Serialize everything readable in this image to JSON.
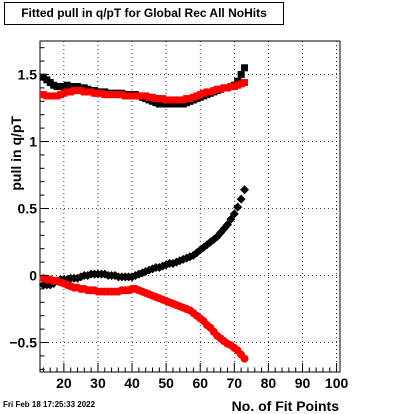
{
  "title": "Fitted pull in q/pT for Global Rec All NoHits",
  "timestamp": "Fri Feb 18 17:25:33 2022",
  "chart_data": {
    "type": "scatter",
    "title": "Fitted pull in q/pT for Global Rec All NoHits",
    "xlabel": "No. of Fit Points",
    "ylabel": "pull in q/pT",
    "xlim": [
      13,
      101
    ],
    "ylim": [
      -0.72,
      1.75
    ],
    "x_ticks": [
      "20",
      "30",
      "40",
      "50",
      "60",
      "70",
      "80",
      "90",
      "100"
    ],
    "y_ticks": [
      "−0.5",
      "0",
      "0.5",
      "1",
      "1.5"
    ],
    "grid": true,
    "series": [
      {
        "color": "#000000",
        "marker": "square",
        "x": [
          14,
          15,
          16,
          17,
          18,
          19,
          20,
          21,
          22,
          23,
          24,
          25,
          26,
          27,
          28,
          29,
          30,
          31,
          32,
          33,
          34,
          35,
          36,
          37,
          38,
          39,
          40,
          41,
          42,
          43,
          44,
          45,
          46,
          47,
          48,
          49,
          50,
          51,
          52,
          53,
          54,
          55,
          56,
          57,
          58,
          59,
          60,
          61,
          62,
          63,
          64,
          65,
          66,
          67,
          68,
          69,
          70,
          71,
          72,
          73
        ],
        "y": [
          1.48,
          1.46,
          1.44,
          1.42,
          1.41,
          1.41,
          1.41,
          1.42,
          1.41,
          1.41,
          1.41,
          1.4,
          1.4,
          1.39,
          1.38,
          1.38,
          1.37,
          1.37,
          1.37,
          1.36,
          1.36,
          1.36,
          1.36,
          1.36,
          1.35,
          1.35,
          1.35,
          1.35,
          1.34,
          1.33,
          1.32,
          1.31,
          1.3,
          1.29,
          1.28,
          1.28,
          1.28,
          1.28,
          1.28,
          1.28,
          1.28,
          1.28,
          1.29,
          1.3,
          1.31,
          1.32,
          1.33,
          1.34,
          1.35,
          1.36,
          1.37,
          1.38,
          1.39,
          1.4,
          1.4,
          1.41,
          1.42,
          1.45,
          1.5,
          1.55
        ]
      },
      {
        "color": "#ff0000",
        "marker": "square",
        "x": [
          14,
          15,
          16,
          17,
          18,
          19,
          20,
          21,
          22,
          23,
          24,
          25,
          26,
          27,
          28,
          29,
          30,
          31,
          32,
          33,
          34,
          35,
          36,
          37,
          38,
          39,
          40,
          41,
          42,
          43,
          44,
          45,
          46,
          47,
          48,
          49,
          50,
          51,
          52,
          53,
          54,
          55,
          56,
          57,
          58,
          59,
          60,
          61,
          62,
          63,
          64,
          65,
          66,
          67,
          68,
          69,
          70,
          71,
          72,
          73
        ],
        "y": [
          1.35,
          1.34,
          1.34,
          1.34,
          1.34,
          1.35,
          1.36,
          1.37,
          1.37,
          1.38,
          1.38,
          1.38,
          1.37,
          1.37,
          1.37,
          1.36,
          1.36,
          1.36,
          1.35,
          1.35,
          1.35,
          1.35,
          1.35,
          1.35,
          1.34,
          1.34,
          1.34,
          1.34,
          1.34,
          1.34,
          1.34,
          1.33,
          1.33,
          1.32,
          1.32,
          1.32,
          1.31,
          1.31,
          1.31,
          1.31,
          1.31,
          1.31,
          1.32,
          1.32,
          1.33,
          1.34,
          1.35,
          1.36,
          1.37,
          1.37,
          1.38,
          1.39,
          1.39,
          1.4,
          1.4,
          1.41,
          1.41,
          1.42,
          1.43,
          1.44
        ]
      },
      {
        "color": "#000000",
        "marker": "diamond",
        "x": [
          14,
          15,
          16,
          17,
          18,
          19,
          20,
          21,
          22,
          23,
          24,
          25,
          26,
          27,
          28,
          29,
          30,
          31,
          32,
          33,
          34,
          35,
          36,
          37,
          38,
          39,
          40,
          41,
          42,
          43,
          44,
          45,
          46,
          47,
          48,
          49,
          50,
          51,
          52,
          53,
          54,
          55,
          56,
          57,
          58,
          59,
          60,
          61,
          62,
          63,
          64,
          65,
          66,
          67,
          68,
          69,
          70,
          71,
          72,
          73
        ],
        "y": [
          -0.07,
          -0.07,
          -0.07,
          -0.06,
          -0.04,
          -0.03,
          -0.03,
          -0.03,
          -0.02,
          -0.02,
          -0.02,
          -0.01,
          0.0,
          0.0,
          0.01,
          0.01,
          0.01,
          0.01,
          0.01,
          0.0,
          0.0,
          0.0,
          -0.01,
          -0.01,
          -0.01,
          -0.01,
          -0.01,
          0.0,
          0.01,
          0.02,
          0.03,
          0.04,
          0.05,
          0.06,
          0.06,
          0.07,
          0.08,
          0.09,
          0.09,
          0.1,
          0.11,
          0.12,
          0.13,
          0.14,
          0.15,
          0.17,
          0.19,
          0.21,
          0.23,
          0.25,
          0.27,
          0.29,
          0.32,
          0.35,
          0.38,
          0.42,
          0.46,
          0.51,
          0.57,
          0.64
        ]
      },
      {
        "color": "#ff0000",
        "marker": "circle",
        "x": [
          14,
          15,
          16,
          17,
          18,
          19,
          20,
          21,
          22,
          23,
          24,
          25,
          26,
          27,
          28,
          29,
          30,
          31,
          32,
          33,
          34,
          35,
          36,
          37,
          38,
          39,
          40,
          41,
          42,
          43,
          44,
          45,
          46,
          47,
          48,
          49,
          50,
          51,
          52,
          53,
          54,
          55,
          56,
          57,
          58,
          59,
          60,
          61,
          62,
          63,
          64,
          65,
          66,
          67,
          68,
          69,
          70,
          71,
          72,
          73
        ],
        "y": [
          -0.02,
          -0.03,
          -0.03,
          -0.04,
          -0.04,
          -0.05,
          -0.06,
          -0.07,
          -0.08,
          -0.09,
          -0.09,
          -0.1,
          -0.1,
          -0.11,
          -0.11,
          -0.11,
          -0.12,
          -0.12,
          -0.12,
          -0.12,
          -0.12,
          -0.12,
          -0.12,
          -0.11,
          -0.11,
          -0.11,
          -0.1,
          -0.1,
          -0.11,
          -0.12,
          -0.13,
          -0.14,
          -0.15,
          -0.16,
          -0.17,
          -0.18,
          -0.19,
          -0.2,
          -0.21,
          -0.22,
          -0.23,
          -0.24,
          -0.25,
          -0.26,
          -0.28,
          -0.3,
          -0.32,
          -0.34,
          -0.37,
          -0.39,
          -0.42,
          -0.45,
          -0.47,
          -0.49,
          -0.51,
          -0.52,
          -0.54,
          -0.56,
          -0.59,
          -0.62
        ]
      }
    ]
  }
}
